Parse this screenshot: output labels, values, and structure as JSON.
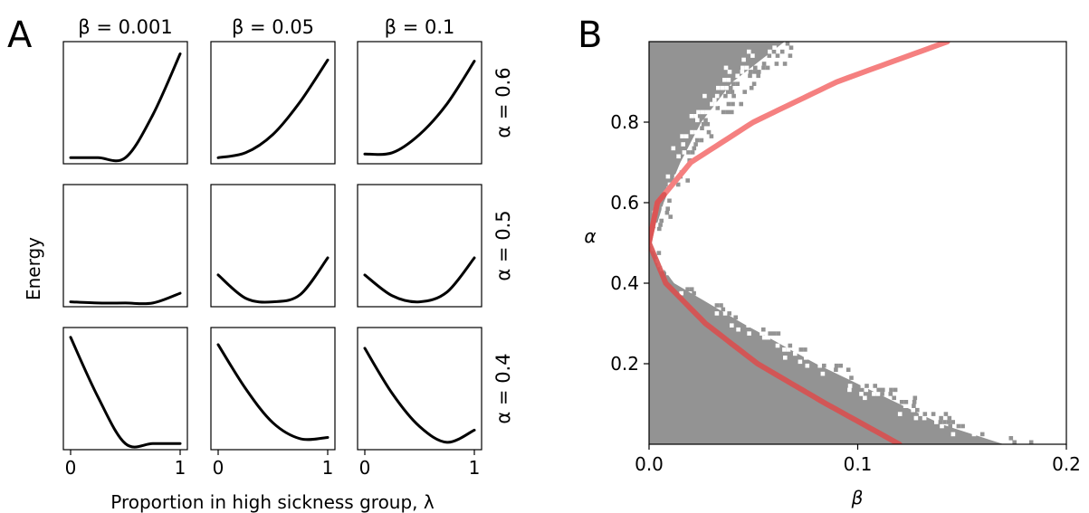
{
  "panel_a": {
    "letter": "A",
    "column_titles": [
      "β = 0.001",
      "β = 0.05",
      "β = 0.1"
    ],
    "row_titles": [
      "α = 0.6",
      "α = 0.5",
      "α = 0.4"
    ],
    "ylabel": "Energy",
    "xlabel": "Proportion in high sickness group, λ",
    "xticks": [
      "0",
      "1"
    ]
  },
  "panel_b": {
    "letter": "B",
    "xlabel": "β",
    "ylabel": "α",
    "xticks": [
      "0.0",
      "0.1",
      "0.2"
    ],
    "yticks": [
      "0.2",
      "0.4",
      "0.6",
      "0.8"
    ]
  },
  "colors": {
    "curve": "#000000",
    "region": "#939393",
    "boundary_light": "#f58080",
    "boundary_dark": "#d95050"
  },
  "chart_data": [
    {
      "type": "line",
      "panel": "A",
      "x": [
        0,
        0.25,
        0.5,
        0.75,
        1
      ],
      "xlim": [
        0,
        1
      ],
      "series": [
        {
          "alpha": 0.6,
          "beta": 0.001,
          "values": [
            0.05,
            0.05,
            0.05,
            0.4,
            0.9
          ]
        },
        {
          "alpha": 0.6,
          "beta": 0.05,
          "values": [
            0.05,
            0.09,
            0.24,
            0.51,
            0.85
          ]
        },
        {
          "alpha": 0.6,
          "beta": 0.1,
          "values": [
            0.08,
            0.09,
            0.24,
            0.49,
            0.84
          ]
        },
        {
          "alpha": 0.5,
          "beta": 0.001,
          "values": [
            0.04,
            0.03,
            0.03,
            0.03,
            0.11
          ]
        },
        {
          "alpha": 0.5,
          "beta": 0.05,
          "values": [
            0.26,
            0.07,
            0.04,
            0.1,
            0.4
          ]
        },
        {
          "alpha": 0.5,
          "beta": 0.1,
          "values": [
            0.26,
            0.09,
            0.04,
            0.12,
            0.4
          ]
        },
        {
          "alpha": 0.4,
          "beta": 0.001,
          "values": [
            0.92,
            0.43,
            0.05,
            0.05,
            0.05
          ]
        },
        {
          "alpha": 0.4,
          "beta": 0.05,
          "values": [
            0.86,
            0.5,
            0.22,
            0.09,
            0.1
          ]
        },
        {
          "alpha": 0.4,
          "beta": 0.1,
          "values": [
            0.83,
            0.46,
            0.19,
            0.06,
            0.16
          ]
        }
      ]
    },
    {
      "type": "heatmap",
      "panel": "B",
      "xlabel": "β",
      "ylabel": "α",
      "xlim": [
        0,
        0.2
      ],
      "ylim": [
        0,
        1
      ],
      "xticks": [
        0.0,
        0.1,
        0.2
      ],
      "yticks": [
        0.2,
        0.4,
        0.6,
        0.8
      ],
      "region_edge_upper": {
        "alpha": [
          0.5,
          0.55,
          0.6,
          0.7,
          0.8,
          0.9,
          1.0
        ],
        "beta": [
          0.0,
          0.004,
          0.007,
          0.015,
          0.025,
          0.04,
          0.065
        ]
      },
      "region_edge_lower": {
        "alpha": [
          0.0,
          0.05,
          0.1,
          0.2,
          0.3,
          0.4,
          0.45,
          0.5
        ],
        "beta": [
          0.17,
          0.14,
          0.12,
          0.08,
          0.045,
          0.012,
          0.005,
          0.0
        ]
      },
      "boundary_curve": {
        "alpha": [
          0.0,
          0.1,
          0.2,
          0.3,
          0.4,
          0.5,
          0.6,
          0.7,
          0.8,
          0.9,
          1.0
        ],
        "beta": [
          0.12,
          0.085,
          0.052,
          0.027,
          0.008,
          0.0,
          0.004,
          0.02,
          0.05,
          0.09,
          0.143
        ]
      }
    }
  ]
}
